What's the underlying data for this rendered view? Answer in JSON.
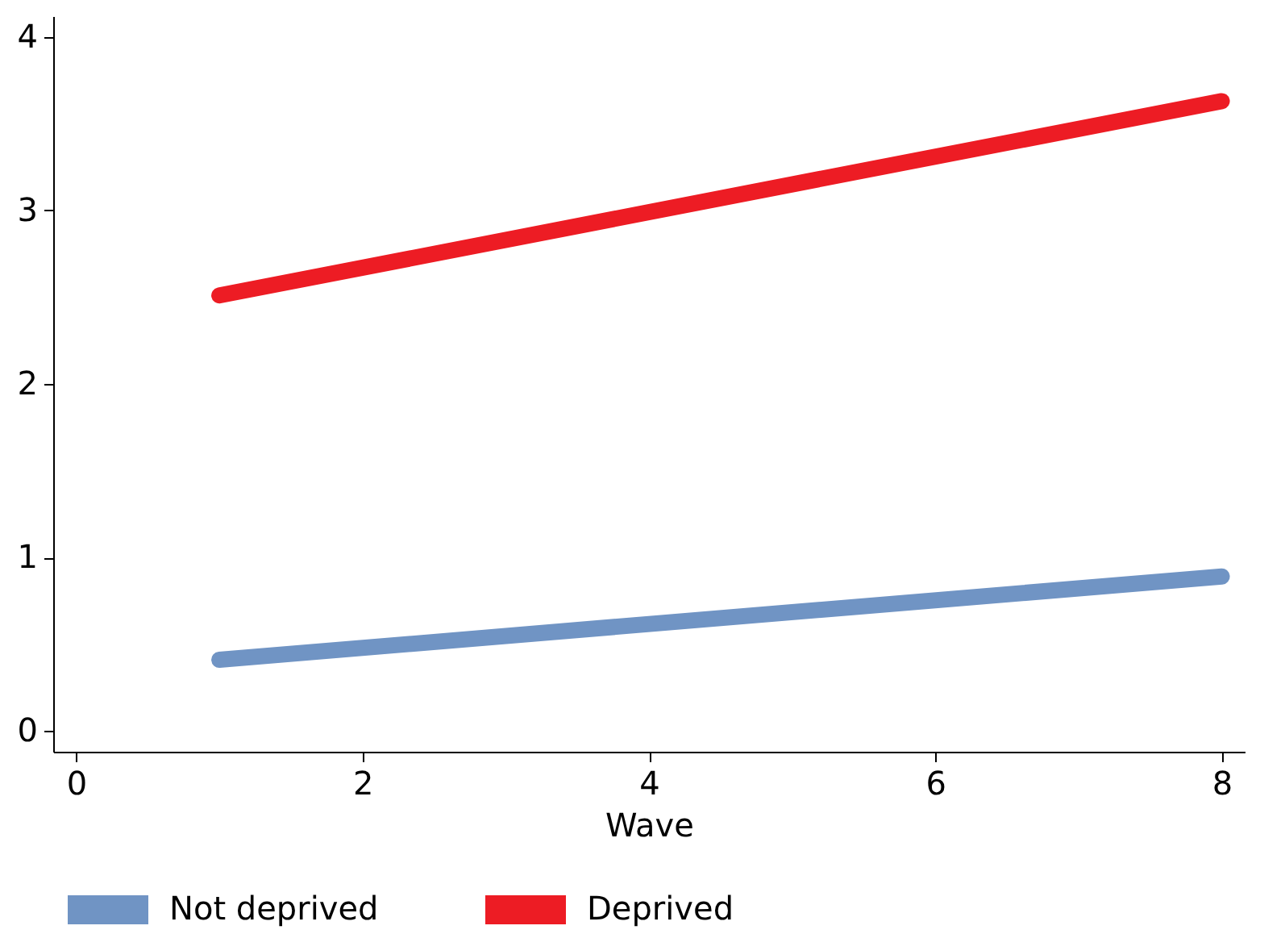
{
  "chart_data": {
    "type": "line",
    "xlabel": "Wave",
    "x": [
      1,
      8
    ],
    "series": [
      {
        "name": "Not deprived",
        "color": "#7094c4",
        "values": [
          0.41,
          0.89
        ]
      },
      {
        "name": "Deprived",
        "color": "#ed1c24",
        "values": [
          2.51,
          3.63
        ]
      }
    ],
    "xlim": [
      -0.16,
      8.16
    ],
    "xticks": [
      0,
      2,
      4,
      6,
      8
    ],
    "ylim": [
      -0.12,
      4.12
    ],
    "yticks": [
      0,
      1,
      2,
      3,
      4
    ],
    "grid": false,
    "legend": "bottom",
    "marker": "none",
    "line_style": "solid"
  }
}
